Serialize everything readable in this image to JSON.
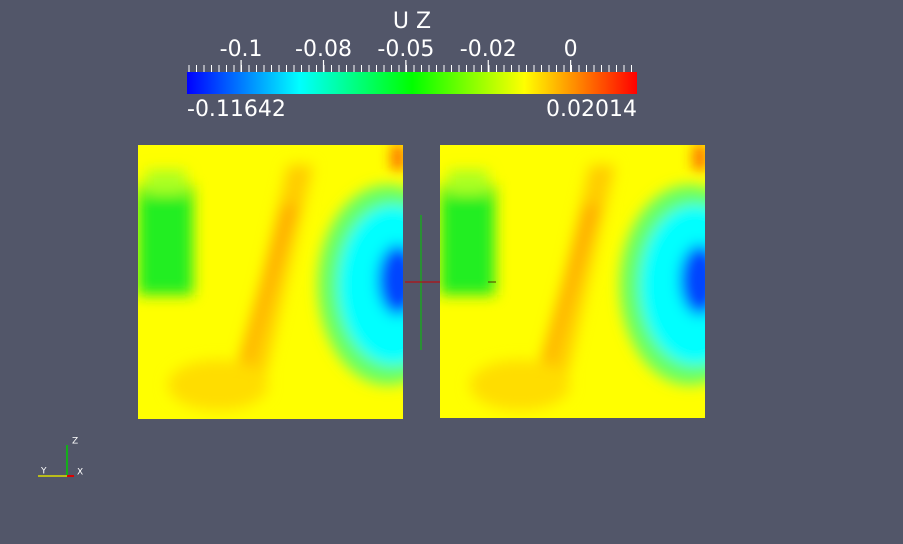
{
  "colorbar": {
    "title": "U Z",
    "range": [
      -0.11642,
      0.02014
    ],
    "ticks": [
      -0.1,
      {
        "value": -0.075,
        "label": "-0.08"
      },
      -0.05,
      {
        "value": -0.025,
        "label": "-0.02"
      },
      0
    ]
  },
  "axes_triad": {
    "z": "Z",
    "y": "Y",
    "x": "X"
  }
}
